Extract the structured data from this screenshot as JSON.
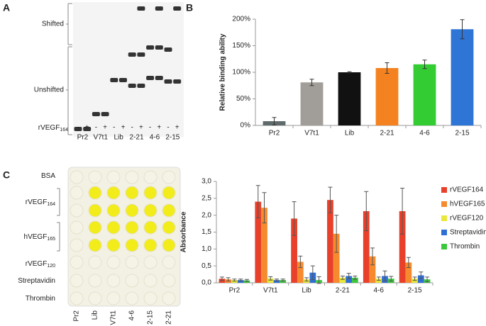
{
  "gel": {
    "panel": "A",
    "shifted": "Shifted",
    "unshifted": "Unshifted",
    "target": {
      "text": "rVEGF",
      "sub": "164"
    },
    "signs": [
      "-",
      "+"
    ],
    "lanes": [
      "Pr2",
      "V7t1",
      "Lib",
      "2-21",
      "4-6",
      "2-15"
    ]
  },
  "plate": {
    "panel": "C",
    "rows": [
      {
        "text": "BSA"
      },
      {
        "text": "rVEGF",
        "sub": "164"
      },
      {
        "text": "hVEGF",
        "sub": "165"
      },
      {
        "text": "rVEGF",
        "sub": "120"
      },
      {
        "text": "Streptavidin"
      },
      {
        "text": "Thrombin"
      }
    ],
    "columns": [
      "Pr2",
      "Lib",
      "V7t1",
      "4-6",
      "2-15",
      "2-21"
    ]
  },
  "chart_data": [
    {
      "type": "bar",
      "panel": "B",
      "ylabel": "Relative binding ability",
      "categories": [
        "Pr2",
        "V7t1",
        "Lib",
        "2-21",
        "4-6",
        "2-15"
      ],
      "values": [
        8,
        81,
        100,
        108,
        115,
        181
      ],
      "errors": [
        7,
        6,
        1,
        10,
        8,
        18
      ],
      "colors": [
        "#5f6b6b",
        "#a19d98",
        "#111111",
        "#f58220",
        "#33cc33",
        "#2e75d6"
      ],
      "ylim": [
        0,
        200
      ],
      "yticks": [
        {
          "value": 0,
          "label": "0%"
        },
        {
          "value": 50,
          "label": "50%"
        },
        {
          "value": 100,
          "label": "100%"
        },
        {
          "value": 150,
          "label": "150%"
        },
        {
          "value": 200,
          "label": "200%"
        }
      ]
    },
    {
      "type": "grouped_bar",
      "ylabel": "Absorbance",
      "legend": "right",
      "categories": [
        "Pr2",
        "V7t1",
        "Lib",
        "2-21",
        "4-6",
        "2-15"
      ],
      "series": [
        {
          "name": "rVEGF164",
          "color": "#e8402a",
          "values": [
            0.12,
            2.4,
            1.9,
            2.45,
            2.12,
            2.12
          ],
          "errors": [
            0.05,
            0.48,
            0.5,
            0.38,
            0.58,
            0.68
          ]
        },
        {
          "name": "hVEGF165",
          "color": "#f58a2e",
          "values": [
            0.1,
            2.22,
            0.62,
            1.45,
            0.78,
            0.6
          ],
          "errors": [
            0.05,
            0.45,
            0.17,
            0.55,
            0.25,
            0.15
          ]
        },
        {
          "name": "rVEGF120",
          "color": "#e8e83a",
          "values": [
            0.08,
            0.13,
            0.1,
            0.15,
            0.12,
            0.12
          ],
          "errors": [
            0.03,
            0.05,
            0.05,
            0.05,
            0.05,
            0.05
          ]
        },
        {
          "name": "Streptavidin",
          "color": "#2e6fd6",
          "values": [
            0.08,
            0.08,
            0.3,
            0.2,
            0.2,
            0.22
          ],
          "errors": [
            0.03,
            0.03,
            0.2,
            0.08,
            0.15,
            0.1
          ]
        },
        {
          "name": "Thrombin",
          "color": "#3cc83c",
          "values": [
            0.07,
            0.08,
            0.08,
            0.15,
            0.12,
            0.1
          ],
          "errors": [
            0.03,
            0.03,
            0.1,
            0.05,
            0.07,
            0.07
          ]
        }
      ],
      "ylim": [
        0,
        3
      ],
      "yticks": [
        {
          "value": 0,
          "label": "0,0"
        },
        {
          "value": 0.5,
          "label": "0,5"
        },
        {
          "value": 1,
          "label": "1,0"
        },
        {
          "value": 1.5,
          "label": "1,5"
        },
        {
          "value": 2,
          "label": "2,0"
        },
        {
          "value": 2.5,
          "label": "2,5"
        },
        {
          "value": 3,
          "label": "3,0"
        }
      ]
    }
  ]
}
